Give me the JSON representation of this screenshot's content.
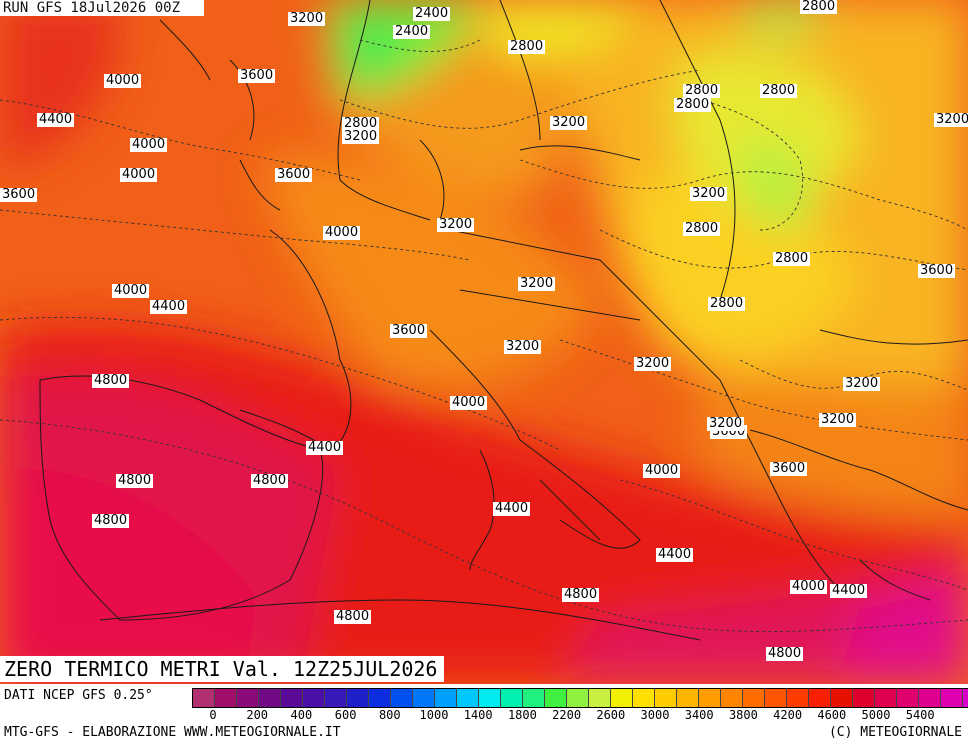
{
  "header": {
    "run_label": "RUN GFS 18Jul2026 00Z"
  },
  "title": "ZERO TERMICO METRI Val. 12Z25JUL2026",
  "footer": {
    "source": "DATI NCEP GFS 0.25°",
    "credit_left": "MTG-GFS - ELABORAZIONE WWW.METEOGIORNALE.IT",
    "credit_right": "(C) METEOGIORNALE"
  },
  "colorbar": {
    "colors": [
      "#b03070",
      "#a0106a",
      "#8a0a78",
      "#720a86",
      "#5a0a96",
      "#4a10a8",
      "#3818b8",
      "#2020c8",
      "#0c2ee0",
      "#0050f0",
      "#0078f8",
      "#00a0ff",
      "#00c8ff",
      "#00eaf0",
      "#00f0b0",
      "#20f080",
      "#40f040",
      "#90f040",
      "#c8f040",
      "#f0f000",
      "#ffe000",
      "#ffcc00",
      "#ffb400",
      "#ff9c00",
      "#ff8400",
      "#ff6c00",
      "#ff5400",
      "#ff3c00",
      "#f82000",
      "#e81000",
      "#e00030",
      "#e00050",
      "#e00070",
      "#e00090",
      "#e000b0",
      "#d800c8"
    ],
    "tick_labels": [
      "0",
      "200",
      "400",
      "600",
      "800",
      "1000",
      "1400",
      "1800",
      "2200",
      "2600",
      "3000",
      "3400",
      "3800",
      "4200",
      "4600",
      "5000",
      "5400"
    ]
  },
  "contour_labels": [
    "3200",
    "2400",
    "2400",
    "2800",
    "2800",
    "4000",
    "3600",
    "4400",
    "4000",
    "2800",
    "3200",
    "2800",
    "2800",
    "2800",
    "3200",
    "4000",
    "3600",
    "3200",
    "3200",
    "4000",
    "3200",
    "2800",
    "4000",
    "4400",
    "3200",
    "3600",
    "2800",
    "3600",
    "2800",
    "3200",
    "4800",
    "4000",
    "3200",
    "3600",
    "3200",
    "4400",
    "3600",
    "4800",
    "4800",
    "4000",
    "3600",
    "4800",
    "4400",
    "4400",
    "4800",
    "4000",
    "4400",
    "4800",
    "4800",
    "3200",
    "3200"
  ]
}
